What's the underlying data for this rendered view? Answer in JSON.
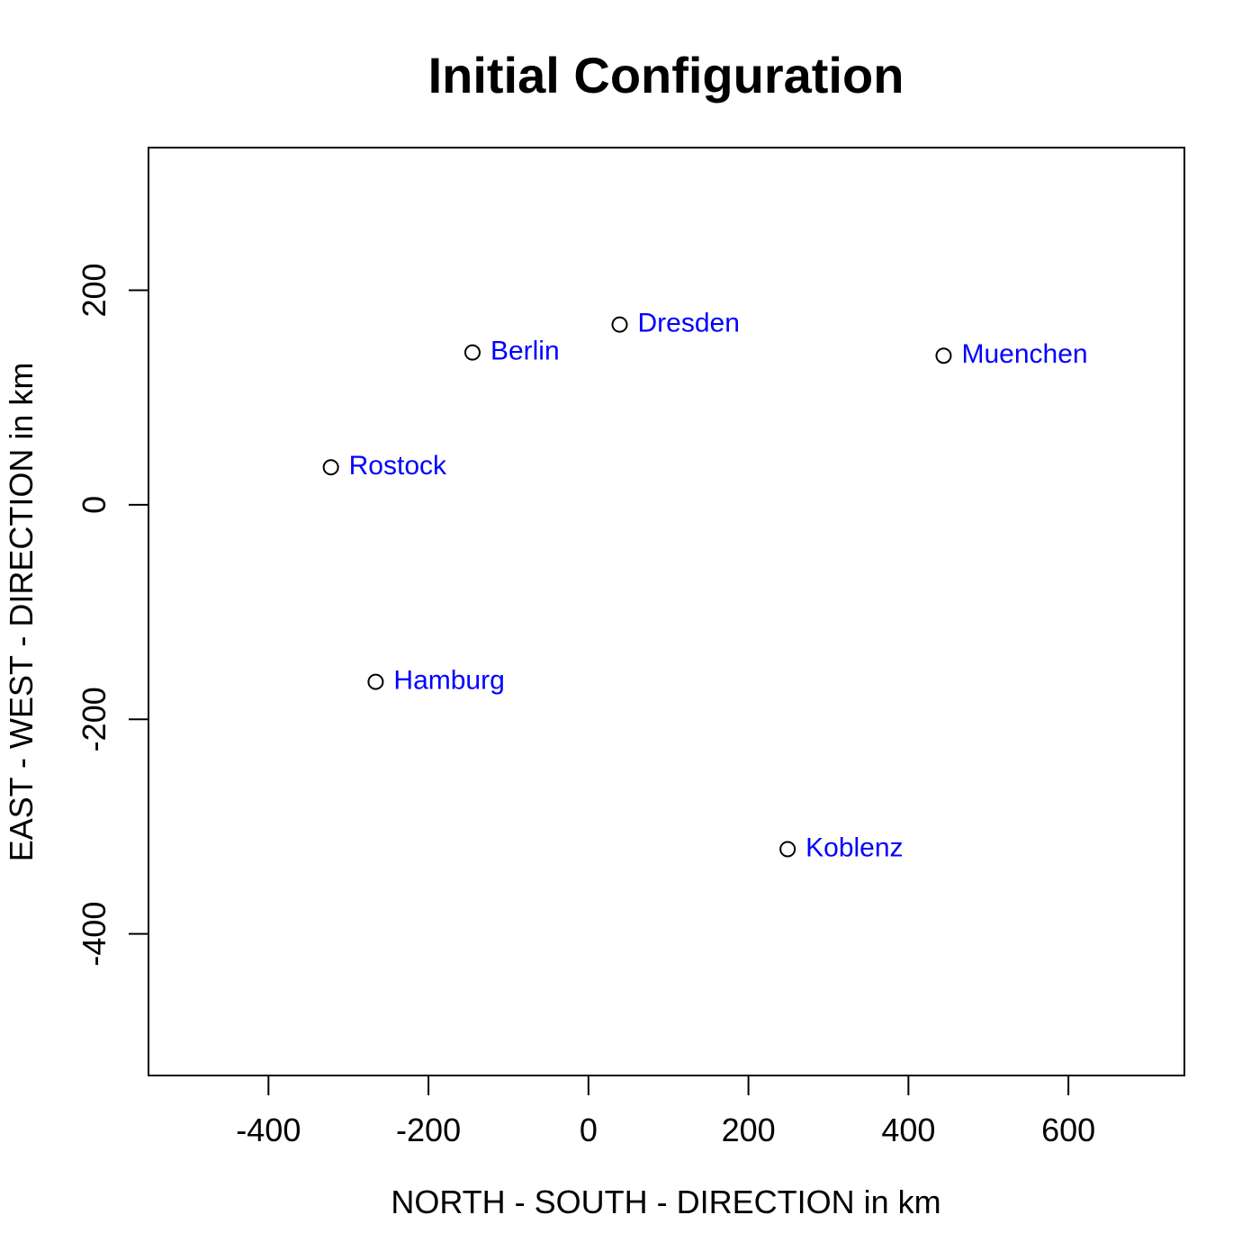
{
  "chart_data": {
    "type": "scatter",
    "title": "Initial Configuration",
    "xlabel": "NORTH - SOUTH - DIRECTION in km",
    "ylabel": "EAST - WEST - DIRECTION in km",
    "xlim": [
      -550,
      745
    ],
    "ylim": [
      -532,
      333
    ],
    "xticks": [
      -400,
      -200,
      0,
      200,
      400,
      600
    ],
    "yticks": [
      -400,
      -200,
      0,
      200
    ],
    "grid": false,
    "colors": {
      "point": "#000000",
      "label": "#0000ff"
    },
    "points": [
      {
        "label": "Berlin",
        "x": -145,
        "y": 142
      },
      {
        "label": "Dresden",
        "x": 39,
        "y": 168
      },
      {
        "label": "Muenchen",
        "x": 444,
        "y": 139
      },
      {
        "label": "Rostock",
        "x": -322,
        "y": 35
      },
      {
        "label": "Hamburg",
        "x": -266,
        "y": -165
      },
      {
        "label": "Koblenz",
        "x": 249,
        "y": -321
      }
    ]
  }
}
